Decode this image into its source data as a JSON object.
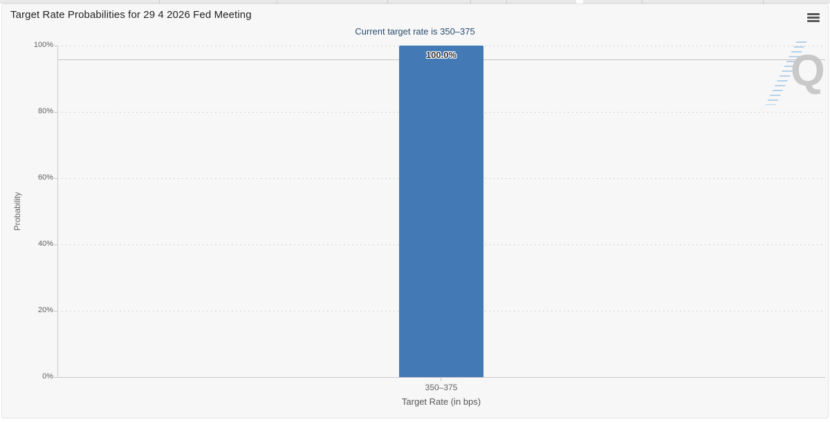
{
  "tabstrip": {
    "note": ""
  },
  "toolbar": {
    "menu_icon": "hamburger-icon"
  },
  "chart_data": {
    "type": "bar",
    "title": "Target Rate Probabilities for 29 4 2026 Fed Meeting",
    "subtitle": "Current target rate is 350–375",
    "categories": [
      "350–375"
    ],
    "values": [
      100.0
    ],
    "value_labels": [
      "100.0%"
    ],
    "xlabel": "Target Rate (in bps)",
    "ylabel": "Probability",
    "ylim": [
      0,
      100
    ],
    "yticks": [
      {
        "value": 0,
        "label": "0%"
      },
      {
        "value": 20,
        "label": "20%"
      },
      {
        "value": 40,
        "label": "40%"
      },
      {
        "value": 60,
        "label": "60%"
      },
      {
        "value": 80,
        "label": "80%"
      },
      {
        "value": 100,
        "label": "100%"
      }
    ],
    "grid": "dotted-horizontal",
    "legend": "none",
    "bar_color": "#4379b5",
    "watermark_letter": "Q"
  },
  "colors": {
    "background": "#f7f7f7",
    "bar": "#4379b5",
    "subtitle_text": "#274b6d",
    "axis_line": "#c9c9c9",
    "axis_label": "#606060"
  }
}
